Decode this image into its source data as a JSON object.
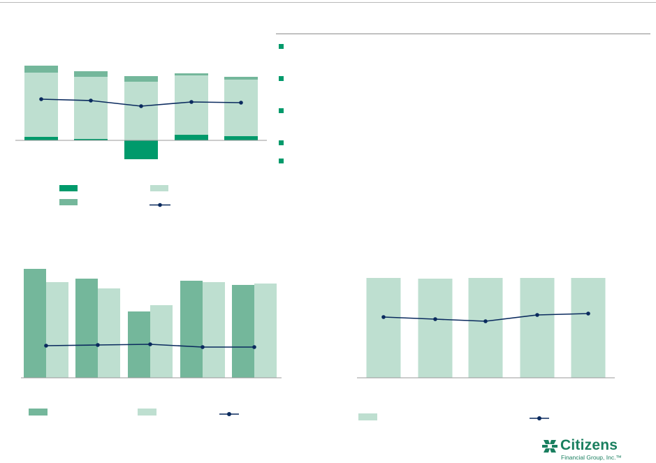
{
  "colors": {
    "dark_green": "#009a6b",
    "mid_green": "#74b79b",
    "light_green": "#bedfd0",
    "navy": "#0a2a5e",
    "bullet": "#009a6b",
    "logo": "#1a7f5f"
  },
  "bullets": [
    "",
    "",
    "",
    "",
    ""
  ],
  "chart_data": [
    {
      "type": "bar",
      "stacked": true,
      "categories": [
        "",
        "",
        "",
        "",
        ""
      ],
      "series": [
        {
          "values": [
            5,
            2,
            -27,
            8,
            6
          ]
        },
        {
          "values": [
            92,
            89,
            84,
            85,
            81
          ]
        },
        {
          "values": [
            10,
            8,
            8,
            3,
            4
          ]
        }
      ],
      "line": {
        "values": [
          59,
          57,
          49,
          55,
          54
        ]
      },
      "ylim": [
        -30,
        110
      ],
      "legend": [
        "",
        "",
        "",
        ""
      ]
    },
    {
      "type": "bar",
      "categories": [
        "",
        "",
        "",
        "",
        ""
      ],
      "series": [
        {
          "values": [
            156,
            142,
            95,
            139,
            133
          ]
        },
        {
          "values": [
            137,
            128,
            104,
            137,
            135
          ]
        }
      ],
      "line": {
        "values": [
          46,
          47,
          48,
          44,
          44
        ]
      },
      "ylim": [
        0,
        160
      ],
      "legend": [
        "",
        "",
        ""
      ]
    },
    {
      "type": "bar",
      "categories": [
        "",
        "",
        "",
        "",
        ""
      ],
      "series": [
        {
          "values": [
            143,
            142,
            143,
            143,
            143
          ]
        }
      ],
      "line": {
        "values": [
          87,
          84,
          81,
          90,
          92
        ]
      },
      "ylim": [
        0,
        145
      ],
      "legend": [
        "",
        ""
      ]
    }
  ],
  "logo": {
    "word": "Citizens",
    "sub": "Financial Group, Inc.™"
  }
}
